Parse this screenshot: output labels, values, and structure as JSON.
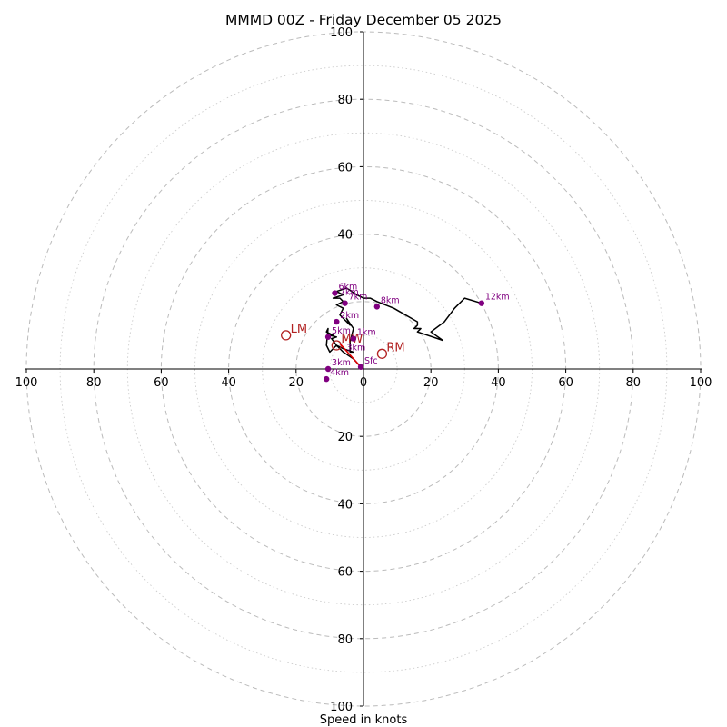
{
  "chart_data": {
    "type": "hodograph",
    "title": "MMMD 00Z - Friday December 05 2025",
    "xlabel": "Speed in knots",
    "units": "knots",
    "range": [
      -100,
      100
    ],
    "tick_labels": {
      "x": [
        "100",
        "80",
        "60",
        "40",
        "20",
        "0",
        "20",
        "40",
        "60",
        "80",
        "100"
      ],
      "y_top": [
        "100",
        "80",
        "60",
        "40"
      ],
      "y_bottom": [
        "20",
        "40",
        "60",
        "80",
        "100"
      ]
    },
    "tick_values": [
      -100,
      -80,
      -60,
      -40,
      -20,
      0,
      20,
      40,
      60,
      80,
      100
    ],
    "ring_major_knots": [
      20,
      40,
      60,
      80,
      100
    ],
    "ring_minor_knots": [
      10,
      30,
      50,
      70,
      90
    ],
    "colors": {
      "trace": "#000000",
      "height_marker": "#800080",
      "storm_motion": "#b22222",
      "shear_vector": "#e00000",
      "ring": "#bbbbbb",
      "axis": "#000000"
    },
    "hodograph": {
      "u": [
        -0.8,
        -3,
        -6,
        -8,
        -9.5,
        -8,
        -10,
        -9,
        -11,
        -10.5,
        -11,
        -10,
        -8,
        -6,
        -3,
        -4,
        -4,
        -3,
        -5,
        -4,
        -7,
        -6,
        -8,
        -6,
        -7,
        -9,
        -6,
        -8,
        -5,
        -2,
        0,
        2,
        4,
        9,
        16,
        16,
        15,
        17,
        16,
        23.5,
        20,
        20,
        24,
        27,
        30,
        35
      ],
      "v": [
        0.6,
        3,
        5,
        7,
        9,
        9.5,
        10,
        10,
        11,
        12,
        7,
        5,
        7,
        6,
        5,
        5,
        8,
        12,
        15,
        13,
        16,
        18,
        19,
        20,
        21,
        21,
        22,
        23,
        24,
        22,
        21,
        21,
        20,
        18,
        14,
        13,
        12,
        12,
        11,
        8.5,
        11,
        11,
        14,
        18,
        21,
        19.5
      ]
    },
    "height_points": [
      {
        "label": "Sfc",
        "u": -0.8,
        "v": 0.6
      },
      {
        "label": "1km",
        "u": -3,
        "v": 9
      },
      {
        "label": "2km",
        "u": -8,
        "v": 14
      },
      {
        "label": "3km",
        "u": -10.5,
        "v": 0
      },
      {
        "label": "4km",
        "u": -11,
        "v": -3
      },
      {
        "label": "5km",
        "u": -10.5,
        "v": 9.5
      },
      {
        "label": "6km",
        "u": -8.5,
        "v": 22.5
      },
      {
        "label": "7km",
        "u": -5.5,
        "v": 19.5
      },
      {
        "label": "8km",
        "u": 4,
        "v": 18.5
      },
      {
        "label": "12km",
        "u": 35,
        "v": 19.5
      }
    ],
    "storm_motion": [
      {
        "label": "RM",
        "u": 5.5,
        "v": 4.5
      },
      {
        "label": "LM",
        "u": -23,
        "v": 10
      },
      {
        "label": "MW",
        "u": -8,
        "v": 7
      }
    ],
    "shear_vector": {
      "from": [
        -0.8,
        0.6
      ],
      "to": [
        -7,
        7.5
      ]
    },
    "extra_labels": [
      "7km",
      "3km"
    ]
  }
}
